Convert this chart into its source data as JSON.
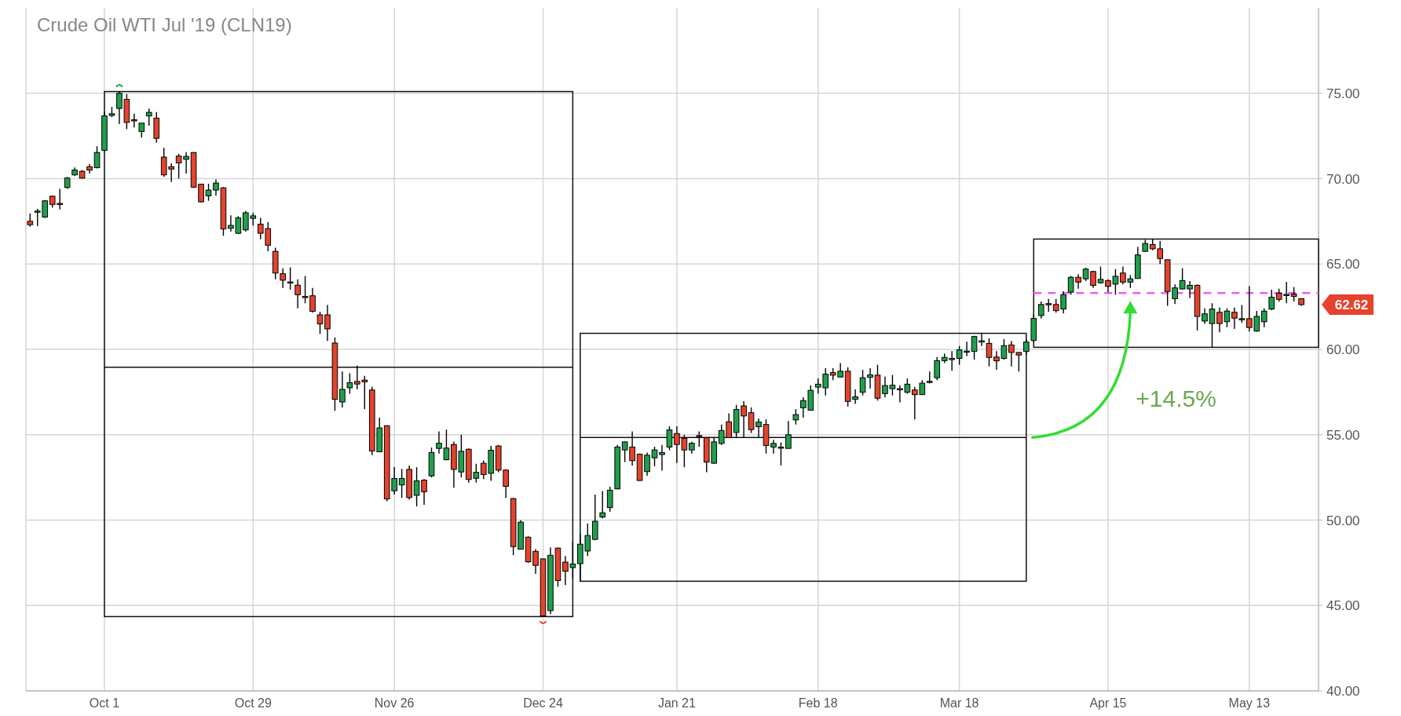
{
  "chart_data": {
    "type": "candlestick",
    "title": "Crude Oil WTI Jul '19 (CLN19)",
    "categories": [
      null,
      null,
      null,
      null,
      null,
      null,
      null,
      null,
      null,
      null,
      "Oct 1",
      null,
      null,
      null,
      null,
      null,
      null,
      null,
      null,
      null,
      null,
      null,
      null,
      null,
      null,
      null,
      null,
      null,
      null,
      null,
      "Oct 29",
      null,
      null,
      null,
      null,
      null,
      null,
      null,
      null,
      null,
      null,
      null,
      null,
      null,
      null,
      null,
      null,
      null,
      null,
      "Nov 26",
      null,
      null,
      null,
      null,
      null,
      null,
      null,
      null,
      null,
      null,
      null,
      null,
      null,
      null,
      null,
      null,
      null,
      null,
      null,
      "Dec 24",
      null,
      null,
      null,
      null,
      null,
      null,
      null,
      null,
      null,
      null,
      null,
      null,
      null,
      null,
      null,
      null,
      null,
      "Jan 21",
      null,
      null,
      null,
      null,
      null,
      null,
      null,
      null,
      null,
      null,
      null,
      null,
      null,
      null,
      null,
      null,
      null,
      null,
      "Feb 18",
      null,
      null,
      null,
      null,
      null,
      null,
      null,
      null,
      null,
      null,
      null,
      null,
      null,
      null,
      null,
      null,
      null,
      null,
      "Mar 18",
      null,
      null,
      null,
      null,
      null,
      null,
      null,
      null,
      null,
      null,
      null,
      null,
      null,
      null,
      null,
      null,
      null,
      null,
      null,
      "Apr 15",
      null,
      null,
      null,
      null,
      null,
      null,
      null,
      null,
      null,
      null,
      null,
      null,
      null,
      null,
      null,
      null,
      null,
      null,
      "May 13",
      null,
      null,
      null,
      null,
      null,
      null,
      null
    ],
    "ohlc": [
      [
        67.5,
        67.96,
        67.18,
        67.3
      ],
      [
        68.05,
        68.23,
        67.22,
        68.1
      ],
      [
        67.75,
        68.75,
        67.7,
        68.7
      ],
      [
        68.97,
        69.0,
        68.3,
        68.49
      ],
      [
        68.55,
        69.4,
        68.2,
        68.5
      ],
      [
        69.48,
        70.1,
        69.4,
        70.03
      ],
      [
        70.22,
        70.65,
        70.15,
        70.5
      ],
      [
        70.43,
        70.5,
        70.0,
        70.03
      ],
      [
        70.7,
        70.85,
        70.3,
        70.5
      ],
      [
        70.64,
        71.9,
        70.6,
        71.53
      ],
      [
        71.66,
        73.9,
        71.6,
        73.67
      ],
      [
        73.7,
        74.2,
        73.6,
        73.8
      ],
      [
        74.11,
        75.1,
        73.2,
        75.0
      ],
      [
        74.64,
        74.95,
        72.9,
        73.29
      ],
      [
        73.45,
        73.8,
        73.0,
        73.4
      ],
      [
        72.76,
        73.25,
        72.4,
        73.25
      ],
      [
        73.67,
        74.1,
        73.1,
        73.88
      ],
      [
        73.54,
        73.9,
        72.1,
        72.36
      ],
      [
        71.26,
        71.8,
        70.1,
        70.22
      ],
      [
        70.7,
        70.9,
        69.8,
        70.56
      ],
      [
        71.32,
        71.45,
        70.0,
        70.92
      ],
      [
        71.13,
        71.55,
        70.3,
        71.3
      ],
      [
        71.53,
        71.55,
        69.45,
        69.5
      ],
      [
        69.67,
        69.7,
        68.6,
        68.64
      ],
      [
        68.99,
        69.7,
        68.7,
        69.33
      ],
      [
        69.33,
        69.95,
        69.0,
        69.74
      ],
      [
        69.46,
        69.5,
        66.65,
        67.05
      ],
      [
        67.09,
        67.85,
        66.9,
        67.26
      ],
      [
        66.8,
        67.8,
        66.75,
        67.7
      ],
      [
        67.0,
        68.1,
        66.9,
        68.0
      ],
      [
        67.67,
        68.0,
        67.25,
        67.82
      ],
      [
        67.33,
        67.7,
        66.45,
        66.8
      ],
      [
        67.07,
        67.45,
        65.75,
        66.1
      ],
      [
        65.74,
        65.95,
        64.1,
        64.47
      ],
      [
        64.43,
        64.75,
        63.6,
        64.05
      ],
      [
        63.95,
        64.8,
        63.5,
        63.9
      ],
      [
        63.76,
        64.1,
        62.4,
        63.2
      ],
      [
        63.1,
        64.3,
        62.7,
        63.05
      ],
      [
        63.14,
        63.6,
        62.15,
        62.23
      ],
      [
        62.02,
        62.2,
        60.9,
        61.49
      ],
      [
        62.02,
        62.6,
        60.5,
        61.2
      ],
      [
        60.37,
        60.7,
        56.4,
        57.07
      ],
      [
        56.92,
        58.7,
        56.6,
        57.66
      ],
      [
        57.75,
        58.6,
        57.4,
        58.05
      ],
      [
        58.12,
        59.05,
        57.65,
        57.97
      ],
      [
        58.2,
        58.45,
        56.5,
        58.1
      ],
      [
        57.62,
        57.8,
        53.8,
        54.05
      ],
      [
        54.0,
        56.0,
        54.0,
        55.4
      ],
      [
        55.53,
        55.55,
        51.1,
        51.24
      ],
      [
        51.72,
        53.1,
        51.5,
        52.44
      ],
      [
        52.06,
        53.0,
        51.3,
        52.44
      ],
      [
        52.97,
        53.2,
        51.2,
        51.32
      ],
      [
        51.45,
        53.1,
        50.8,
        52.3
      ],
      [
        52.34,
        52.4,
        50.9,
        51.66
      ],
      [
        52.59,
        54.25,
        52.5,
        53.96
      ],
      [
        54.2,
        55.2,
        53.9,
        54.5
      ],
      [
        53.54,
        55.3,
        53.5,
        54.22
      ],
      [
        54.43,
        54.6,
        51.9,
        52.97
      ],
      [
        52.82,
        55.0,
        52.5,
        54.03
      ],
      [
        54.15,
        54.2,
        52.2,
        52.38
      ],
      [
        52.45,
        53.3,
        52.2,
        52.8
      ],
      [
        53.33,
        53.5,
        52.4,
        52.67
      ],
      [
        52.74,
        54.35,
        52.3,
        54.09
      ],
      [
        54.34,
        54.4,
        52.8,
        52.93
      ],
      [
        52.93,
        52.98,
        51.3,
        51.98
      ],
      [
        51.26,
        51.3,
        47.95,
        48.45
      ],
      [
        48.3,
        50.0,
        48.3,
        49.88
      ],
      [
        49.0,
        49.05,
        47.5,
        47.56
      ],
      [
        48.17,
        48.3,
        46.85,
        47.35
      ],
      [
        47.73,
        47.75,
        44.35,
        44.39
      ],
      [
        44.7,
        48.4,
        44.5,
        47.94
      ],
      [
        48.36,
        48.4,
        46.1,
        46.46
      ],
      [
        47.54,
        47.9,
        46.2,
        47.01
      ],
      [
        47.22,
        48.72,
        46.6,
        47.43
      ],
      [
        47.45,
        49.2,
        46.42,
        48.59
      ],
      [
        48.19,
        49.8,
        47.9,
        49.1
      ],
      [
        48.87,
        51.5,
        48.83,
        49.93
      ],
      [
        50.18,
        51.7,
        50.1,
        50.43
      ],
      [
        50.73,
        51.95,
        50.5,
        51.75
      ],
      [
        51.83,
        54.4,
        51.8,
        54.28
      ],
      [
        54.11,
        54.6,
        53.4,
        54.58
      ],
      [
        54.28,
        55.2,
        53.2,
        53.48
      ],
      [
        53.86,
        53.9,
        52.3,
        52.32
      ],
      [
        52.84,
        53.95,
        52.6,
        53.8
      ],
      [
        53.65,
        54.3,
        53.15,
        54.11
      ],
      [
        53.84,
        54.4,
        52.9,
        53.96
      ],
      [
        54.28,
        55.5,
        54.1,
        55.28
      ],
      [
        55.07,
        55.5,
        53.35,
        54.43
      ],
      [
        54.79,
        55.0,
        53.1,
        54.11
      ],
      [
        54.11,
        54.6,
        53.9,
        54.5
      ],
      [
        54.95,
        55.2,
        54.3,
        54.9
      ],
      [
        54.83,
        54.85,
        52.8,
        53.4
      ],
      [
        53.33,
        54.85,
        53.3,
        54.58
      ],
      [
        54.49,
        55.6,
        54.4,
        55.25
      ],
      [
        55.76,
        56.25,
        54.8,
        54.83
      ],
      [
        55.13,
        56.75,
        54.8,
        56.48
      ],
      [
        56.69,
        56.97,
        54.8,
        56.1
      ],
      [
        56.29,
        56.6,
        55.1,
        55.3
      ],
      [
        55.47,
        55.95,
        54.85,
        55.74
      ],
      [
        55.6,
        55.9,
        53.9,
        54.37
      ],
      [
        54.28,
        54.7,
        53.9,
        54.49
      ],
      [
        54.28,
        54.55,
        53.2,
        54.26
      ],
      [
        54.2,
        55.8,
        54.2,
        55.0
      ],
      [
        55.87,
        56.5,
        55.6,
        56.18
      ],
      [
        56.58,
        57.2,
        56.0,
        57.0
      ],
      [
        56.44,
        57.9,
        56.4,
        57.6
      ],
      [
        57.79,
        58.3,
        57.4,
        57.96
      ],
      [
        57.75,
        58.9,
        57.3,
        58.55
      ],
      [
        58.64,
        58.9,
        58.2,
        58.49
      ],
      [
        58.38,
        59.2,
        58.38,
        58.72
      ],
      [
        58.72,
        58.95,
        56.65,
        56.95
      ],
      [
        57.07,
        57.65,
        56.8,
        57.22
      ],
      [
        57.49,
        58.8,
        57.3,
        58.34
      ],
      [
        58.36,
        58.9,
        57.7,
        58.51
      ],
      [
        58.49,
        59.1,
        57.0,
        57.14
      ],
      [
        57.41,
        58.4,
        57.2,
        57.88
      ],
      [
        57.7,
        58.5,
        57.3,
        57.9
      ],
      [
        57.7,
        57.9,
        56.9,
        57.68
      ],
      [
        57.49,
        58.3,
        57.4,
        57.96
      ],
      [
        57.62,
        57.8,
        55.9,
        57.35
      ],
      [
        57.35,
        58.2,
        57.35,
        58.02
      ],
      [
        58.1,
        58.7,
        58.0,
        58.13
      ],
      [
        58.34,
        59.55,
        58.2,
        59.34
      ],
      [
        59.34,
        59.75,
        59.2,
        59.53
      ],
      [
        59.45,
        59.9,
        58.75,
        59.47
      ],
      [
        59.47,
        60.2,
        59.1,
        59.97
      ],
      [
        59.85,
        60.45,
        59.6,
        59.9
      ],
      [
        59.88,
        60.8,
        59.4,
        60.75
      ],
      [
        60.45,
        60.94,
        60.2,
        60.5
      ],
      [
        60.35,
        60.65,
        59.0,
        59.53
      ],
      [
        59.55,
        59.9,
        58.8,
        59.33
      ],
      [
        59.47,
        60.6,
        59.4,
        60.22
      ],
      [
        60.26,
        60.5,
        59.0,
        59.82
      ],
      [
        59.82,
        59.85,
        58.7,
        59.67
      ],
      [
        59.88,
        60.6,
        59.7,
        60.43
      ],
      [
        60.52,
        62.05,
        60.4,
        61.81
      ],
      [
        61.98,
        62.8,
        61.8,
        62.63
      ],
      [
        62.68,
        62.95,
        62.2,
        62.65
      ],
      [
        62.63,
        62.95,
        62.15,
        62.27
      ],
      [
        62.36,
        63.4,
        62.1,
        63.2
      ],
      [
        63.35,
        64.3,
        63.2,
        64.22
      ],
      [
        64.22,
        64.4,
        63.55,
        63.94
      ],
      [
        64.13,
        64.78,
        64.0,
        64.7
      ],
      [
        64.56,
        64.6,
        63.6,
        63.75
      ],
      [
        63.9,
        64.85,
        63.85,
        64.1
      ],
      [
        64.03,
        64.1,
        63.35,
        63.69
      ],
      [
        63.82,
        64.7,
        63.2,
        64.28
      ],
      [
        64.47,
        64.85,
        63.8,
        63.94
      ],
      [
        63.94,
        64.35,
        63.6,
        64.13
      ],
      [
        64.15,
        66.0,
        64.15,
        65.53
      ],
      [
        65.74,
        66.41,
        65.7,
        66.2
      ],
      [
        66.14,
        66.46,
        65.8,
        65.89
      ],
      [
        65.89,
        66.35,
        65.0,
        65.32
      ],
      [
        65.25,
        65.25,
        62.55,
        63.39
      ],
      [
        62.97,
        63.8,
        62.65,
        63.6
      ],
      [
        63.54,
        64.75,
        63.5,
        64.03
      ],
      [
        63.54,
        64.0,
        63.0,
        63.75
      ],
      [
        63.75,
        63.8,
        61.1,
        61.93
      ],
      [
        61.66,
        62.4,
        61.5,
        62.08
      ],
      [
        61.51,
        62.7,
        60.12,
        62.36
      ],
      [
        62.17,
        62.45,
        61.0,
        61.51
      ],
      [
        61.62,
        62.4,
        61.3,
        62.24
      ],
      [
        62.17,
        62.45,
        61.2,
        61.83
      ],
      [
        61.8,
        62.6,
        61.55,
        61.76
      ],
      [
        61.8,
        63.7,
        61.05,
        61.28
      ],
      [
        61.07,
        62.25,
        61.03,
        61.93
      ],
      [
        61.62,
        62.4,
        61.3,
        62.24
      ],
      [
        62.36,
        63.5,
        62.3,
        63.05
      ],
      [
        63.29,
        63.55,
        62.8,
        62.93
      ],
      [
        63.18,
        63.95,
        62.7,
        63.22
      ],
      [
        63.24,
        63.65,
        62.8,
        63.1
      ],
      [
        62.97,
        62.97,
        62.55,
        62.62
      ]
    ],
    "colors": [
      "#e5432d",
      "#1fa04c",
      "#1fa04c",
      "#e5432d",
      "#e5432d",
      "#1fa04c",
      "#1fa04c",
      "#e5432d",
      "#e5432d",
      "#1fa04c",
      "#1fa04c",
      "#1fa04c",
      "#1fa04c",
      "#e5432d",
      "#e5432d",
      "#1fa04c",
      "#1fa04c",
      "#e5432d",
      "#e5432d",
      "#e5432d",
      "#e5432d",
      "#1fa04c",
      "#e5432d",
      "#e5432d",
      "#1fa04c",
      "#1fa04c",
      "#e5432d",
      "#1fa04c",
      "#1fa04c",
      "#1fa04c",
      "#1fa04c",
      "#e5432d",
      "#e5432d",
      "#e5432d",
      "#e5432d",
      "#e5432d",
      "#e5432d",
      "#e5432d",
      "#e5432d",
      "#e5432d",
      "#e5432d",
      "#e5432d",
      "#1fa04c",
      "#1fa04c",
      "#e5432d",
      "#e5432d",
      "#e5432d",
      "#1fa04c",
      "#e5432d",
      "#1fa04c",
      "#1fa04c",
      "#e5432d",
      "#1fa04c",
      "#e5432d",
      "#1fa04c",
      "#1fa04c",
      "#1fa04c",
      "#e5432d",
      "#1fa04c",
      "#e5432d",
      "#1fa04c",
      "#e5432d",
      "#1fa04c",
      "#e5432d",
      "#e5432d",
      "#e5432d",
      "#1fa04c",
      "#e5432d",
      "#e5432d",
      "#e5432d",
      "#1fa04c",
      "#e5432d",
      "#e5432d",
      "#1fa04c",
      "#1fa04c",
      "#1fa04c",
      "#1fa04c",
      "#1fa04c",
      "#1fa04c",
      "#1fa04c",
      "#1fa04c",
      "#e5432d",
      "#e5432d",
      "#1fa04c",
      "#1fa04c",
      "#1fa04c",
      "#1fa04c",
      "#e5432d",
      "#e5432d",
      "#1fa04c",
      "#e5432d",
      "#e5432d",
      "#1fa04c",
      "#1fa04c",
      "#e5432d",
      "#1fa04c",
      "#e5432d",
      "#e5432d",
      "#1fa04c",
      "#e5432d",
      "#1fa04c",
      "#e5432d",
      "#1fa04c",
      "#1fa04c",
      "#1fa04c",
      "#1fa04c",
      "#1fa04c",
      "#1fa04c",
      "#e5432d",
      "#1fa04c",
      "#e5432d",
      "#1fa04c",
      "#1fa04c",
      "#1fa04c",
      "#e5432d",
      "#1fa04c",
      "#1fa04c",
      "#e5432d",
      "#1fa04c",
      "#e5432d",
      "#1fa04c",
      "#1fa04c",
      "#1fa04c",
      "#1fa04c",
      "#1fa04c",
      "#1fa04c",
      "#1fa04c",
      "#1fa04c",
      "#1fa04c",
      "#e5432d",
      "#e5432d",
      "#1fa04c",
      "#e5432d",
      "#e5432d",
      "#1fa04c",
      "#1fa04c",
      "#1fa04c",
      "#e5432d",
      "#e5432d",
      "#1fa04c",
      "#1fa04c",
      "#e5432d",
      "#1fa04c",
      "#e5432d",
      "#1fa04c",
      "#e5432d",
      "#1fa04c",
      "#e5432d",
      "#1fa04c",
      "#1fa04c",
      "#1fa04c",
      "#e5432d",
      "#e5432d",
      "#e5432d",
      "#1fa04c",
      "#1fa04c",
      "#1fa04c",
      "#e5432d",
      "#1fa04c",
      "#1fa04c",
      "#e5432d",
      "#1fa04c",
      "#e5432d",
      "#e5432d",
      "#e5432d",
      "#1fa04c",
      "#1fa04c",
      "#1fa04c",
      "#e5432d",
      "#1fa04c",
      "#e5432d",
      "#e5432d"
    ],
    "ylim": [
      40,
      80
    ],
    "yticks": [
      {
        "value": 40,
        "label": "40.00"
      },
      {
        "value": 45,
        "label": "45.00"
      },
      {
        "value": 50,
        "label": "50.00"
      },
      {
        "value": 55,
        "label": "55.00"
      },
      {
        "value": 60,
        "label": "60.00"
      },
      {
        "value": 65,
        "label": "65.00"
      },
      {
        "value": 70,
        "label": "70.00"
      },
      {
        "value": 75,
        "label": "75.00"
      }
    ],
    "grid": true,
    "ref_lines": [
      {
        "axis": "y",
        "value": 63.3,
        "color": "#f05cf0",
        "line_style": "dashed"
      }
    ],
    "annotations": [
      "+14.5%",
      "62.62"
    ]
  }
}
